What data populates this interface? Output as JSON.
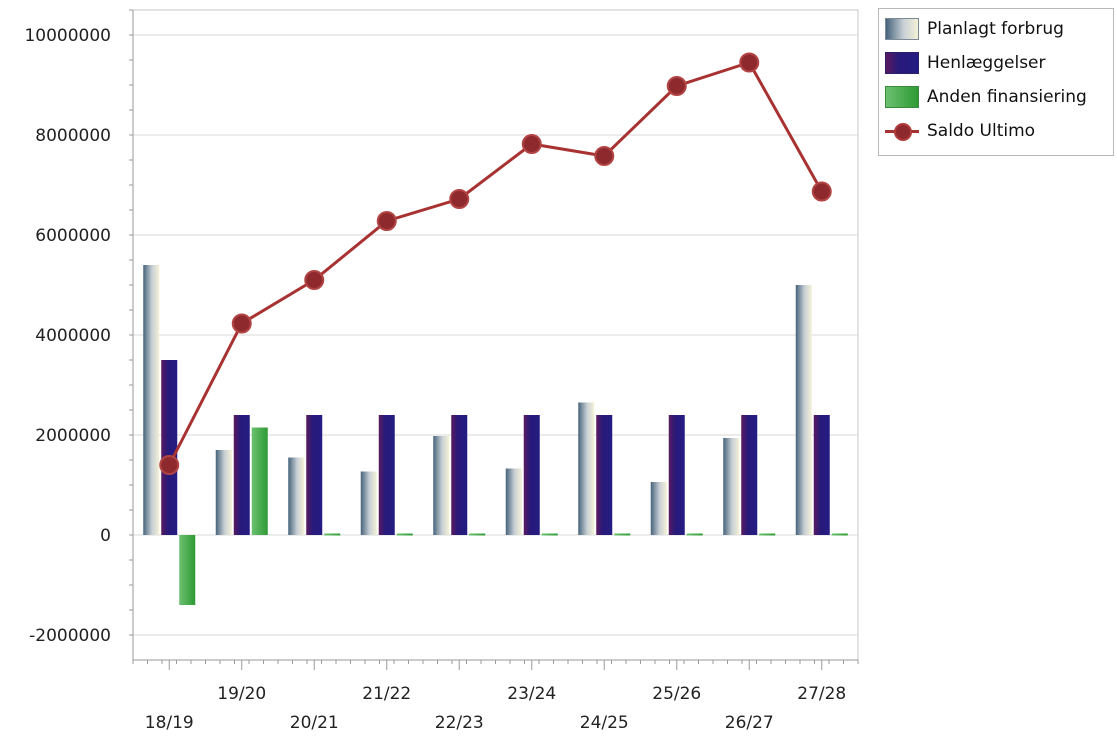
{
  "chart_data": {
    "type": "bar",
    "categories": [
      "18/19",
      "19/20",
      "20/21",
      "21/22",
      "22/23",
      "23/24",
      "24/25",
      "25/26",
      "26/27",
      "27/28"
    ],
    "series": [
      {
        "name": "Planlagt forbrug",
        "type": "bar",
        "color": "#c8d0d6",
        "values": [
          5400000,
          1700000,
          1550000,
          1270000,
          1980000,
          1330000,
          2650000,
          1060000,
          1940000,
          5000000
        ]
      },
      {
        "name": "Henlæggelser",
        "type": "bar",
        "color": "#281a7a",
        "values": [
          3500000,
          2400000,
          2400000,
          2400000,
          2400000,
          2400000,
          2400000,
          2400000,
          2400000,
          2400000
        ]
      },
      {
        "name": "Anden finansiering",
        "type": "bar",
        "color": "#3aa83e",
        "values": [
          -1400000,
          2150000,
          30000,
          30000,
          30000,
          30000,
          30000,
          30000,
          30000,
          30000
        ]
      },
      {
        "name": "Saldo Ultimo",
        "type": "line",
        "color": "#a83232",
        "values": [
          1400000,
          4230000,
          5100000,
          6280000,
          6720000,
          7820000,
          7580000,
          8980000,
          9450000,
          6870000
        ]
      }
    ],
    "yticks": [
      "10000000",
      "8000000",
      "6000000",
      "4000000",
      "2000000",
      "0",
      "-2000000"
    ],
    "ylim": [
      -2500000,
      10500000
    ],
    "grid": true,
    "legend_position": "top-right"
  }
}
